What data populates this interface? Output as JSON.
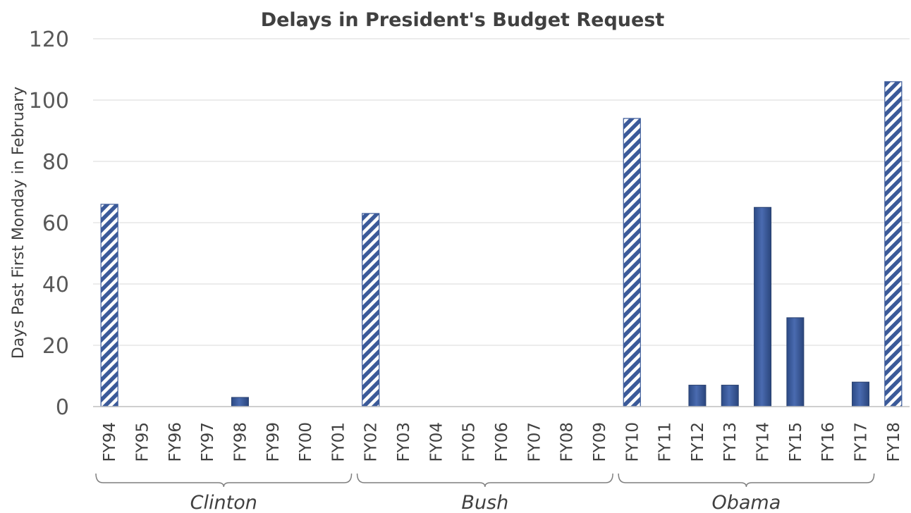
{
  "chart_data": {
    "type": "bar",
    "title": "Delays in President's  Budget Request",
    "ylabel": "Days Past First Monday in February",
    "xlabel": "",
    "ylim": [
      0,
      120
    ],
    "yticks": [
      0,
      20,
      40,
      60,
      80,
      100,
      120
    ],
    "grid": true,
    "legend": "none",
    "categories": [
      "FY94",
      "FY95",
      "FY96",
      "FY97",
      "FY98",
      "FY99",
      "FY00",
      "FY01",
      "FY02",
      "FY03",
      "FY04",
      "FY05",
      "FY06",
      "FY07",
      "FY08",
      "FY09",
      "FY10",
      "FY11",
      "FY12",
      "FY13",
      "FY14",
      "FY15",
      "FY16",
      "FY17",
      "FY18"
    ],
    "values": [
      66,
      0,
      0,
      0,
      3,
      0,
      0,
      0,
      63,
      0,
      0,
      0,
      0,
      0,
      0,
      0,
      94,
      0,
      7,
      7,
      65,
      29,
      0,
      8,
      106
    ],
    "hatched": [
      true,
      false,
      false,
      false,
      false,
      false,
      false,
      false,
      true,
      false,
      false,
      false,
      false,
      false,
      false,
      false,
      true,
      false,
      false,
      false,
      false,
      false,
      false,
      false,
      true
    ],
    "groups": [
      {
        "label": "Clinton",
        "start": 0,
        "end": 7
      },
      {
        "label": "Bush",
        "start": 8,
        "end": 15
      },
      {
        "label": "Obama",
        "start": 16,
        "end": 23
      }
    ],
    "colors": {
      "bar": "#3b5a99",
      "bar_edge": "#2b4270",
      "hatch_bg": "#ffffff"
    }
  }
}
